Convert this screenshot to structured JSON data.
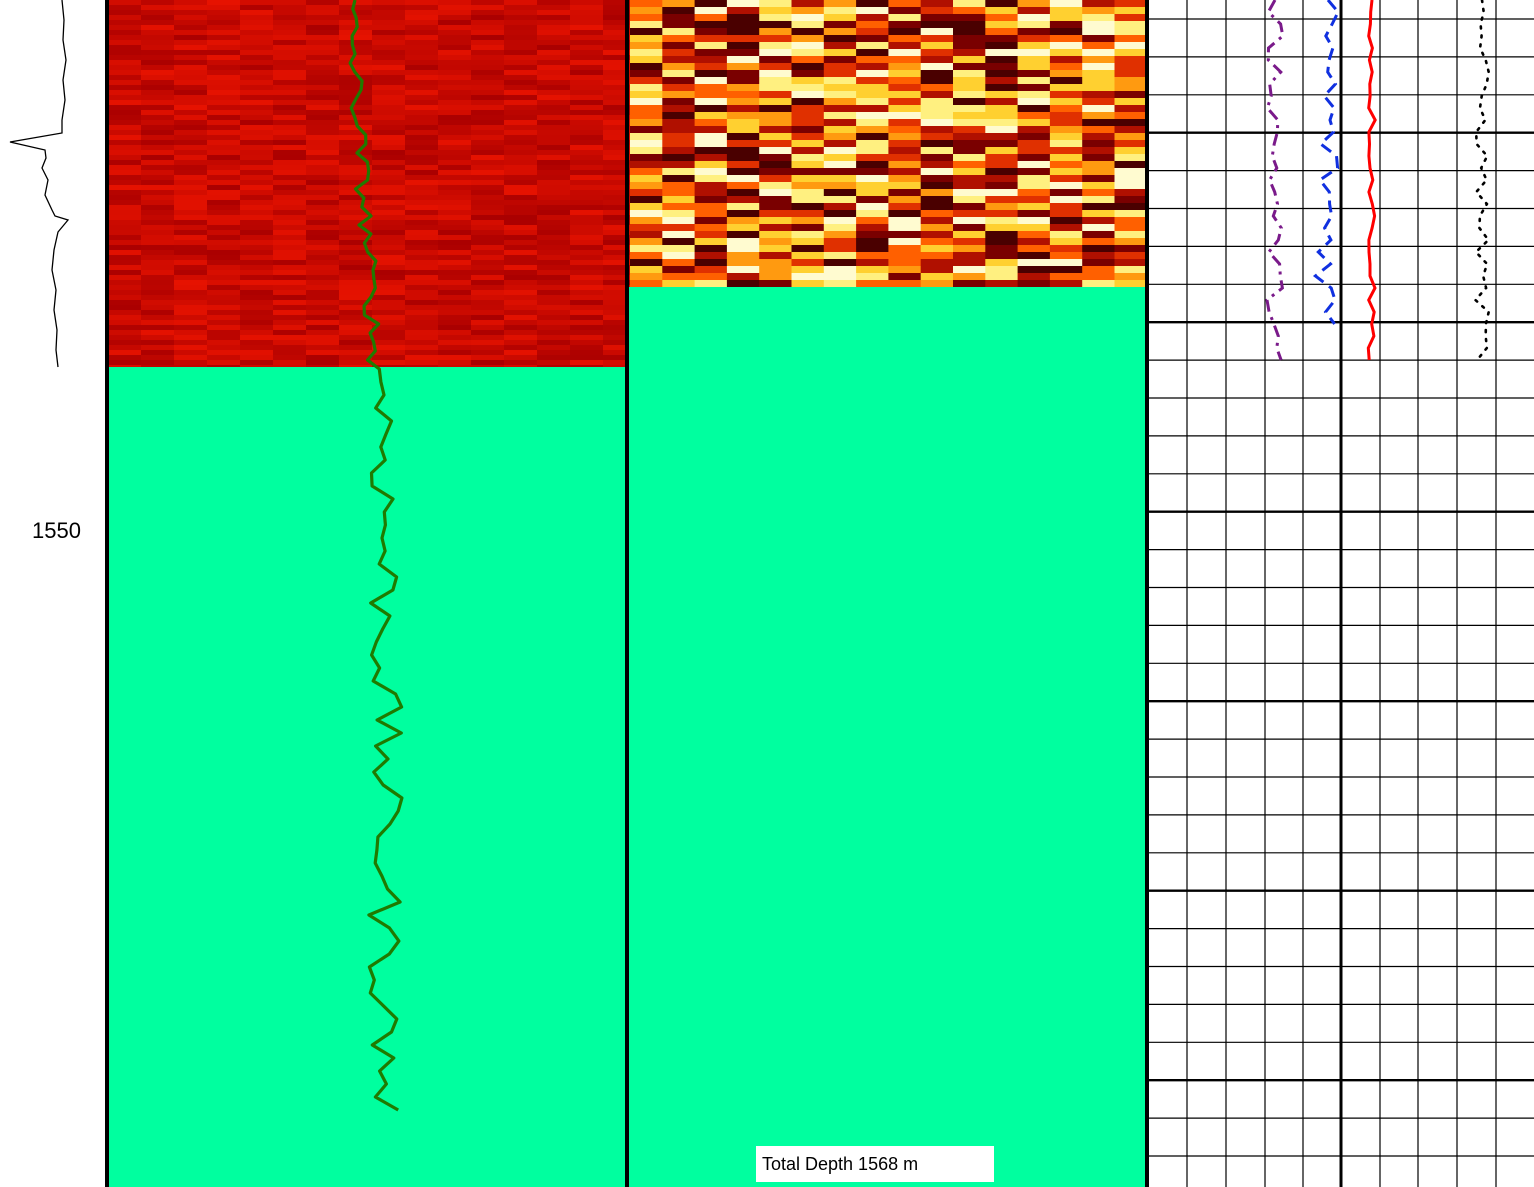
{
  "chart_data": {
    "type": "line",
    "title": "",
    "depth_unit": "m",
    "depth_ticks": [
      1550
    ],
    "colors": {
      "background": "#ffffff",
      "fill": "#00ff9f",
      "heat_dark_red": "#c00000",
      "track1_curve": "#207a00",
      "frame": "#000000",
      "curve_purple": "#7a1a8a",
      "curve_blue": "#1030e0",
      "curve_red": "#ff0000",
      "curve_black": "#000000"
    },
    "annotation": {
      "text": "Total Depth 1568 m"
    },
    "tracks": [
      {
        "name": "",
        "kind": "log-curve",
        "series": [
          {
            "name": "",
            "color": "black"
          }
        ]
      },
      {
        "name": "",
        "kind": "image-and-curve",
        "colormap": "dark-red",
        "series": [
          {
            "name": "",
            "color": "green"
          }
        ]
      },
      {
        "name": "",
        "kind": "image",
        "colormap": "hot"
      },
      {
        "name": "",
        "kind": "curves",
        "grid": true,
        "series": [
          {
            "name": "",
            "color": "purple",
            "style": "dash-dot"
          },
          {
            "name": "",
            "color": "blue",
            "style": "dashed"
          },
          {
            "name": "",
            "color": "red",
            "style": "solid"
          },
          {
            "name": "",
            "color": "black",
            "style": "dotted"
          }
        ]
      }
    ]
  }
}
